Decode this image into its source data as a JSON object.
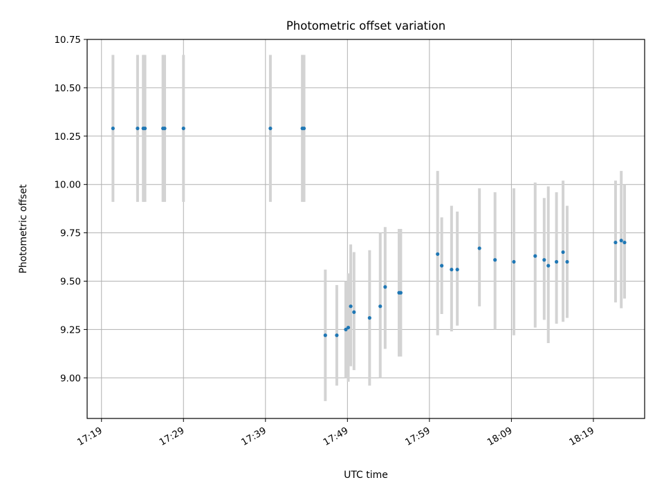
{
  "chart_data": {
    "type": "scatter",
    "title": "Photometric offset variation",
    "xlabel": "UTC time",
    "ylabel": "Photometric offset",
    "x_ticks": [
      "17:19",
      "17:29",
      "17:39",
      "17:49",
      "17:59",
      "18:09",
      "18:19"
    ],
    "x_tick_minutes": [
      0,
      10,
      20,
      30,
      40,
      50,
      60
    ],
    "xlim": [
      -1.75,
      66.25
    ],
    "ylim": [
      8.79,
      10.75
    ],
    "y_ticks": [
      "9.00",
      "9.25",
      "9.50",
      "9.75",
      "10.00",
      "10.25",
      "10.50",
      "10.75"
    ],
    "y_tick_values": [
      9.0,
      9.25,
      9.5,
      9.75,
      10.0,
      10.25,
      10.5,
      10.75
    ],
    "grid": true,
    "marker_color": "#1f77b4",
    "errorbar_color": "#d3d3d3",
    "series": [
      {
        "x": [
          1.4,
          4.4,
          5.1,
          5.3,
          7.5,
          7.7,
          10.0,
          20.6,
          24.5,
          24.7,
          27.3,
          28.7,
          29.8,
          30.1,
          30.4,
          30.8,
          32.7,
          34.0,
          34.6,
          36.3,
          36.5,
          41.0,
          41.5,
          42.7,
          43.4,
          46.1,
          48.0,
          50.3,
          52.9,
          54.0,
          54.5,
          55.5,
          56.3,
          56.8,
          62.7,
          63.4,
          63.8
        ],
        "y": [
          10.29,
          10.29,
          10.29,
          10.29,
          10.29,
          10.29,
          10.29,
          10.29,
          10.29,
          10.29,
          9.22,
          9.22,
          9.25,
          9.26,
          9.37,
          9.34,
          9.31,
          9.37,
          9.47,
          9.44,
          9.44,
          9.64,
          9.58,
          9.56,
          9.56,
          9.67,
          9.61,
          9.6,
          9.63,
          9.61,
          9.58,
          9.6,
          9.65,
          9.6,
          9.7,
          9.71,
          9.7
        ],
        "err_low": [
          9.91,
          9.91,
          9.91,
          9.91,
          9.91,
          9.91,
          9.91,
          9.91,
          9.91,
          9.91,
          8.88,
          8.96,
          9.0,
          8.98,
          9.06,
          9.04,
          8.96,
          9.0,
          9.15,
          9.11,
          9.11,
          9.22,
          9.33,
          9.24,
          9.27,
          9.37,
          9.25,
          9.22,
          9.26,
          9.3,
          9.18,
          9.28,
          9.29,
          9.31,
          9.39,
          9.36,
          9.41
        ],
        "err_high": [
          10.67,
          10.67,
          10.67,
          10.67,
          10.67,
          10.67,
          10.67,
          10.67,
          10.67,
          10.67,
          9.56,
          9.48,
          9.5,
          9.54,
          9.69,
          9.65,
          9.66,
          9.75,
          9.78,
          9.77,
          9.77,
          10.07,
          9.83,
          9.89,
          9.86,
          9.98,
          9.96,
          9.98,
          10.01,
          9.93,
          9.99,
          9.96,
          10.02,
          9.89,
          10.02,
          10.07,
          10.0
        ]
      }
    ]
  }
}
